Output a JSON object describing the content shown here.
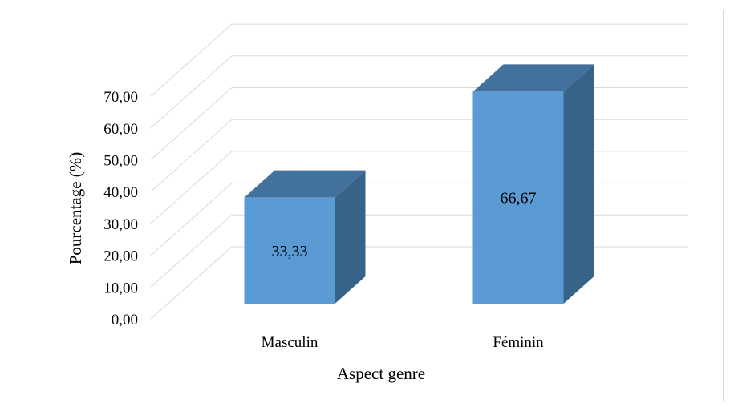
{
  "chart_data": {
    "type": "bar",
    "title": "",
    "xlabel": "Aspect genre",
    "ylabel": "Pourcentage (%)",
    "categories": [
      "Masculin",
      "Féminin"
    ],
    "values": [
      33.33,
      66.67
    ],
    "value_labels": [
      "33,33",
      "66,67"
    ],
    "ylim": [
      0,
      70
    ],
    "y_ticks": [
      0,
      10,
      20,
      30,
      40,
      50,
      60,
      70
    ],
    "y_tick_labels": [
      "0,00",
      "10,00",
      "20,00",
      "30,00",
      "40,00",
      "50,00",
      "60,00",
      "70,00"
    ],
    "grid": true,
    "legend": "none",
    "style": "3d-column",
    "colors": {
      "bar_front": "#5b9bd5",
      "bar_top": "#41719c",
      "bar_side": "#386389",
      "gridline": "#d9d9d9"
    }
  }
}
